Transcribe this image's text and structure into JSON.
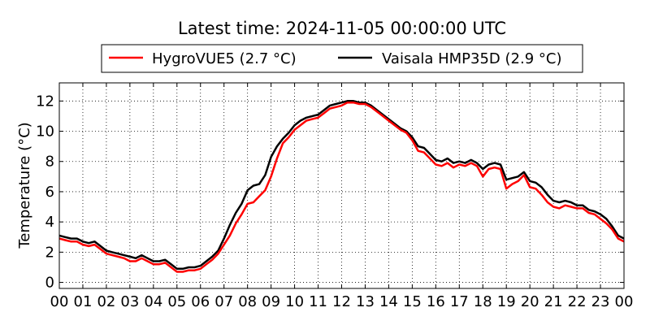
{
  "chart_data": {
    "type": "line",
    "title": "Latest time: 2024-11-05 00:00:00 UTC",
    "xlabel": "",
    "ylabel": "Temperature (°C)",
    "xlim": [
      0,
      24
    ],
    "ylim": [
      -0.4,
      13.2
    ],
    "x_ticks": [
      "00",
      "01",
      "02",
      "03",
      "04",
      "05",
      "06",
      "07",
      "08",
      "09",
      "10",
      "11",
      "12",
      "13",
      "14",
      "15",
      "16",
      "17",
      "18",
      "19",
      "20",
      "21",
      "22",
      "23",
      "00"
    ],
    "y_ticks": [
      0,
      2,
      4,
      6,
      8,
      10,
      12
    ],
    "grid": true,
    "legend_position": "top",
    "x": [
      0,
      0.25,
      0.5,
      0.75,
      1,
      1.25,
      1.5,
      1.75,
      2,
      2.25,
      2.5,
      2.75,
      3,
      3.25,
      3.5,
      3.75,
      4,
      4.25,
      4.5,
      4.75,
      5,
      5.25,
      5.5,
      5.75,
      6,
      6.25,
      6.5,
      6.75,
      7,
      7.25,
      7.5,
      7.75,
      8,
      8.25,
      8.5,
      8.75,
      9,
      9.25,
      9.5,
      9.75,
      10,
      10.25,
      10.5,
      10.75,
      11,
      11.25,
      11.5,
      11.75,
      12,
      12.25,
      12.5,
      12.75,
      13,
      13.25,
      13.5,
      13.75,
      14,
      14.25,
      14.5,
      14.75,
      15,
      15.25,
      15.5,
      15.75,
      16,
      16.25,
      16.5,
      16.75,
      17,
      17.25,
      17.5,
      17.75,
      18,
      18.25,
      18.5,
      18.75,
      19,
      19.25,
      19.5,
      19.75,
      20,
      20.25,
      20.5,
      20.75,
      21,
      21.25,
      21.5,
      21.75,
      22,
      22.25,
      22.5,
      22.75,
      23,
      23.25,
      23.5,
      23.75,
      24
    ],
    "series": [
      {
        "name": "HygroVUE5 (2.7 °C)",
        "color": "#ff0000",
        "values": [
          2.9,
          2.8,
          2.7,
          2.7,
          2.5,
          2.4,
          2.5,
          2.2,
          1.9,
          1.8,
          1.7,
          1.6,
          1.4,
          1.4,
          1.6,
          1.4,
          1.2,
          1.2,
          1.3,
          1.0,
          0.7,
          0.7,
          0.8,
          0.8,
          0.9,
          1.2,
          1.5,
          1.9,
          2.5,
          3.1,
          3.9,
          4.5,
          5.2,
          5.3,
          5.7,
          6.1,
          7.0,
          8.2,
          9.2,
          9.6,
          10.1,
          10.4,
          10.7,
          10.8,
          10.9,
          11.2,
          11.5,
          11.6,
          11.7,
          11.9,
          11.9,
          11.8,
          11.8,
          11.6,
          11.3,
          11.0,
          10.7,
          10.4,
          10.1,
          9.9,
          9.4,
          8.7,
          8.6,
          8.2,
          7.8,
          7.7,
          7.9,
          7.6,
          7.8,
          7.7,
          7.9,
          7.7,
          7.0,
          7.5,
          7.6,
          7.5,
          6.2,
          6.5,
          6.7,
          7.1,
          6.3,
          6.2,
          5.8,
          5.3,
          5.0,
          4.9,
          5.1,
          5.0,
          4.9,
          4.9,
          4.6,
          4.5,
          4.2,
          3.9,
          3.5,
          2.9,
          2.7
        ]
      },
      {
        "name": "Vaisala HMP35D (2.9 °C)",
        "color": "#000000",
        "values": [
          3.1,
          3.0,
          2.9,
          2.9,
          2.7,
          2.6,
          2.7,
          2.4,
          2.1,
          2.0,
          1.9,
          1.8,
          1.7,
          1.6,
          1.8,
          1.6,
          1.4,
          1.4,
          1.5,
          1.2,
          0.9,
          0.9,
          1.0,
          1.0,
          1.1,
          1.4,
          1.7,
          2.1,
          2.9,
          3.8,
          4.6,
          5.2,
          6.1,
          6.4,
          6.5,
          7.1,
          8.3,
          9.0,
          9.5,
          9.9,
          10.4,
          10.7,
          10.9,
          11.0,
          11.1,
          11.4,
          11.7,
          11.8,
          11.9,
          12.0,
          12.0,
          11.9,
          11.9,
          11.7,
          11.4,
          11.1,
          10.8,
          10.5,
          10.2,
          10.0,
          9.6,
          9.0,
          8.9,
          8.5,
          8.1,
          8.0,
          8.2,
          7.9,
          8.0,
          7.9,
          8.1,
          7.9,
          7.5,
          7.8,
          7.9,
          7.8,
          6.8,
          6.9,
          7.0,
          7.3,
          6.7,
          6.6,
          6.3,
          5.8,
          5.4,
          5.3,
          5.4,
          5.3,
          5.1,
          5.1,
          4.8,
          4.7,
          4.5,
          4.2,
          3.7,
          3.1,
          2.9
        ]
      }
    ]
  }
}
